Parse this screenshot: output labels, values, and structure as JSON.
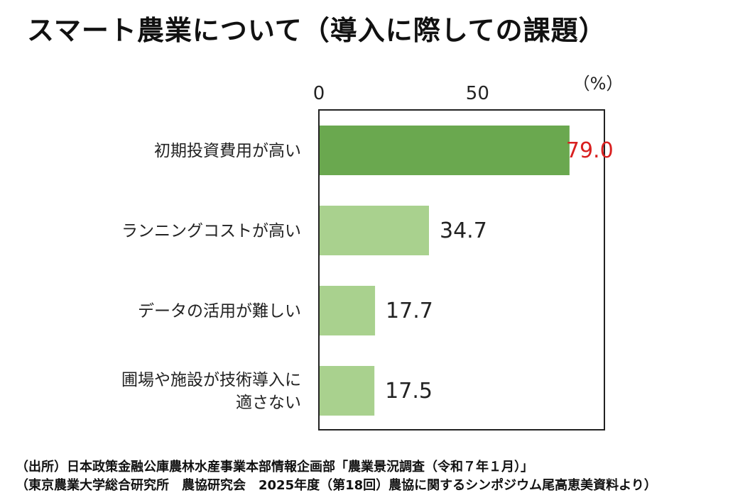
{
  "title": "スマート農業について（導入に際しての課題）",
  "unit_label": "（%）",
  "source_lines": [
    "（出所）日本政策金融公庫農林水産事業本部情報企画部「農業景況調査（令和７年１月）」",
    "（東京農業大学総合研究所　農協研究会　2025年度（第18回）農協に関するシンポジウム尾高恵美資料より）"
  ],
  "colors": {
    "highlight_bar": "#6aa84f",
    "bar": "#a9d18e",
    "highlight_label": "#d92020",
    "label": "#222222",
    "frame": "#222222"
  },
  "chart_data": {
    "type": "bar",
    "orientation": "horizontal",
    "xlim": [
      0,
      90
    ],
    "xticks": [
      0,
      50
    ],
    "grid": false,
    "categories": [
      [
        "初期投資費用が高い"
      ],
      [
        "ランニングコストが高い"
      ],
      [
        "データの活用が難しい"
      ],
      [
        "圃場や施設が技術導入に",
        "適さない"
      ]
    ],
    "values": [
      79.0,
      34.7,
      17.7,
      17.5
    ],
    "value_labels": [
      "79.0",
      "34.7",
      "17.7",
      "17.5"
    ],
    "highlight_index": 0
  }
}
